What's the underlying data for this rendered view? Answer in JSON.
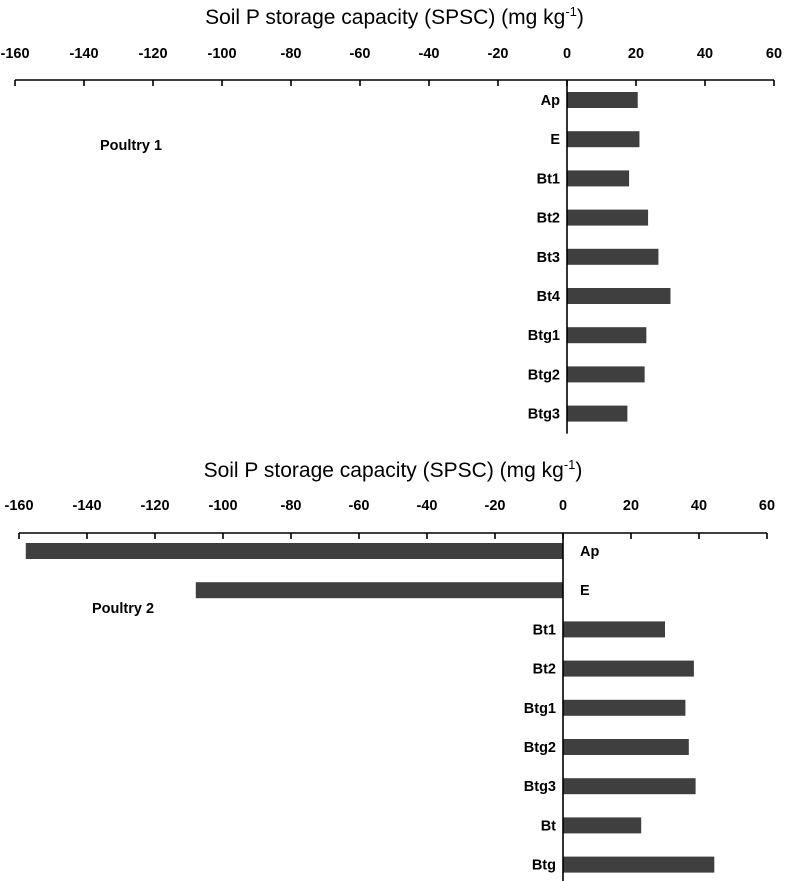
{
  "chart_data": [
    {
      "type": "bar",
      "orientation": "horizontal",
      "title": "Poultry 1",
      "axis_title": {
        "text": "Soil P storage capacity (SPSC) (mg kg",
        "superscript": "-1",
        "suffix": ")"
      },
      "axis_position": "top",
      "xlim": [
        -160,
        60
      ],
      "xticks": [
        -160,
        -140,
        -120,
        -100,
        -80,
        -60,
        -40,
        -20,
        0,
        20,
        40,
        60
      ],
      "categories": [
        "Ap",
        "E",
        "Bt1",
        "Bt2",
        "Bt3",
        "Bt4",
        "Btg1",
        "Btg2",
        "Btg3"
      ],
      "values": [
        20.5,
        21,
        18,
        23.5,
        26.5,
        30,
        23,
        22.5,
        17.5
      ],
      "grid": false,
      "bar_color": "#3f3f3f"
    },
    {
      "type": "bar",
      "orientation": "horizontal",
      "title": "Poultry 2",
      "axis_title": {
        "text": "Soil P storage capacity (SPSC) (mg kg",
        "superscript": "-1",
        "suffix": ")"
      },
      "axis_position": "top",
      "xlim": [
        -160,
        60
      ],
      "xticks": [
        -160,
        -140,
        -120,
        -100,
        -80,
        -60,
        -40,
        -20,
        0,
        20,
        40,
        60
      ],
      "categories": [
        "Ap",
        "E",
        "Bt1",
        "Bt2",
        "Btg1",
        "Btg2",
        "Btg3",
        "Bt",
        "Btg"
      ],
      "values": [
        -158,
        -108,
        30,
        38.5,
        36,
        37,
        39,
        23,
        44.5
      ],
      "grid": false,
      "bar_color": "#3f3f3f"
    }
  ]
}
